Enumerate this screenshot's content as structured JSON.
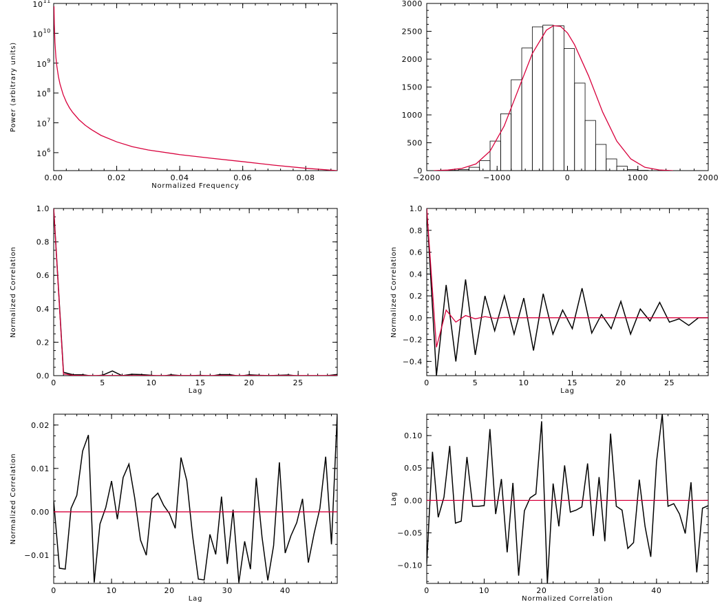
{
  "colors": {
    "data": "#000000",
    "model": "#d8003c",
    "axis": "#000000"
  },
  "chart_data": [
    {
      "type": "line",
      "xlabel": "Normalized Frequency",
      "ylabel": "Power (arbitrary units)",
      "xlim": [
        0,
        0.09
      ],
      "ylim": [
        250000,
        100000000000
      ],
      "yscale": "log",
      "xticks": [
        0.0,
        0.02,
        0.04,
        0.06,
        0.08
      ],
      "xticklabels": [
        "0.00",
        "0.02",
        "0.04",
        "0.06",
        "0.08"
      ],
      "yticks": [
        1000000,
        10000000,
        100000000,
        1000000000,
        10000000000,
        100000000000
      ],
      "yticklabels": [
        {
          "base": "10",
          "exp": "6"
        },
        {
          "base": "10",
          "exp": "7"
        },
        {
          "base": "10",
          "exp": "8"
        },
        {
          "base": "10",
          "exp": "9"
        },
        {
          "base": "10",
          "exp": "10"
        },
        {
          "base": "10",
          "exp": "11"
        }
      ],
      "series": [
        {
          "role": "model",
          "style": "line",
          "x": [
            0.0001,
            0.0002,
            0.0004,
            0.0007,
            0.001,
            0.0015,
            0.002,
            0.003,
            0.004,
            0.005,
            0.006,
            0.008,
            0.01,
            0.012,
            0.015,
            0.02,
            0.025,
            0.03,
            0.04,
            0.05,
            0.06,
            0.07,
            0.08,
            0.09
          ],
          "y": [
            80000000000,
            20000000000,
            5000000000,
            1600000000,
            800000000,
            355000000,
            200000000,
            89000000,
            50000000,
            32000000,
            22500000,
            12800000,
            8300000,
            5900000,
            3800000,
            2300000,
            1580000,
            1230000,
            860000,
            650000,
            500000,
            380000,
            300000,
            250000
          ]
        }
      ]
    },
    {
      "type": "bar",
      "xlim": [
        -2000,
        2000
      ],
      "ylim": [
        0,
        3000
      ],
      "xticks": [
        -2000,
        -1000,
        0,
        1000,
        2000
      ],
      "xticklabels": [
        "−2000",
        "−1000",
        "0",
        "1000",
        "2000"
      ],
      "yticks": [
        0,
        500,
        1000,
        1500,
        2000,
        2500,
        3000
      ],
      "yticklabels": [
        "0",
        "500",
        "1000",
        "1500",
        "2000",
        "2500",
        "3000"
      ],
      "histogram": {
        "bin_edges": [
          -1700,
          -1550,
          -1400,
          -1250,
          -1100,
          -950,
          -800,
          -650,
          -500,
          -350,
          -200,
          -50,
          100,
          250,
          400,
          550,
          700,
          850,
          1000,
          1150,
          1300
        ],
        "counts": [
          5,
          20,
          60,
          180,
          530,
          1020,
          1630,
          2200,
          2580,
          2610,
          2600,
          2190,
          1570,
          900,
          470,
          210,
          80,
          20,
          5,
          0
        ]
      },
      "series": [
        {
          "role": "model",
          "style": "line",
          "x": [
            -1900,
            -1700,
            -1500,
            -1300,
            -1100,
            -900,
            -700,
            -500,
            -300,
            -200,
            -100,
            0,
            100,
            300,
            500,
            700,
            900,
            1100,
            1300,
            1500
          ],
          "y": [
            0,
            10,
            40,
            120,
            350,
            800,
            1450,
            2100,
            2520,
            2600,
            2590,
            2470,
            2260,
            1700,
            1050,
            530,
            210,
            60,
            12,
            0
          ]
        }
      ]
    },
    {
      "type": "line",
      "xlabel": "Lag",
      "ylabel": "Normalized Correlation",
      "xlim": [
        0,
        29
      ],
      "ylim": [
        0.0,
        1.0
      ],
      "xticks": [
        0,
        5,
        10,
        15,
        20,
        25
      ],
      "xticklabels": [
        "0",
        "5",
        "10",
        "15",
        "20",
        "25"
      ],
      "yticks": [
        0.0,
        0.2,
        0.4,
        0.6,
        0.8,
        1.0
      ],
      "yticklabels": [
        "0.0",
        "0.2",
        "0.4",
        "0.6",
        "0.8",
        "1.0"
      ],
      "series": [
        {
          "role": "data",
          "style": "line",
          "x": [
            0,
            1,
            2,
            3,
            4,
            5,
            6,
            7,
            8,
            9,
            10,
            11,
            12,
            13,
            14,
            15,
            16,
            17,
            18,
            19,
            20,
            21,
            22,
            23,
            24,
            25,
            26,
            27,
            28,
            29
          ],
          "y": [
            1.0,
            0.02,
            0.005,
            0.005,
            -0.003,
            0.003,
            0.028,
            0.0,
            0.008,
            0.006,
            0.002,
            -0.004,
            0.005,
            0.0,
            0.0,
            0.002,
            -0.003,
            0.006,
            0.006,
            -0.003,
            0.005,
            0.002,
            0.0,
            0.002,
            0.004,
            -0.002,
            -0.002,
            -0.005,
            0.0,
            0.007
          ]
        },
        {
          "role": "model",
          "style": "line",
          "x": [
            0,
            1,
            2,
            3,
            4,
            5,
            6,
            7,
            8,
            9,
            10,
            11,
            12,
            13,
            14,
            15,
            16,
            17,
            18,
            19,
            20,
            21,
            22,
            23,
            24,
            25,
            26,
            27,
            28,
            29
          ],
          "y": [
            1.0,
            0.01,
            0.002,
            0.001,
            0.001,
            0.001,
            0.001,
            0.001,
            0.001,
            0.001,
            0.001,
            0.001,
            0.001,
            0.001,
            0.001,
            0.001,
            0.001,
            0.001,
            0.001,
            0.001,
            0.001,
            0.001,
            0.001,
            0.001,
            0.001,
            0.001,
            0.001,
            0.001,
            0.001,
            0.001
          ]
        }
      ]
    },
    {
      "type": "line",
      "xlabel": "Lag",
      "ylabel": "Normalized Correlation",
      "xlim": [
        0,
        29
      ],
      "ylim": [
        -0.53,
        1.0
      ],
      "xticks": [
        0,
        5,
        10,
        15,
        20,
        25
      ],
      "xticklabels": [
        "0",
        "5",
        "10",
        "15",
        "20",
        "25"
      ],
      "yticks": [
        -0.4,
        -0.2,
        0.0,
        0.2,
        0.4,
        0.6,
        0.8,
        1.0
      ],
      "yticklabels": [
        "−0.4",
        "−0.2",
        "0.0",
        "0.2",
        "0.4",
        "0.6",
        "0.8",
        "1.0"
      ],
      "series": [
        {
          "role": "data",
          "style": "line",
          "x": [
            0,
            1,
            2,
            3,
            4,
            5,
            6,
            7,
            8,
            9,
            10,
            11,
            12,
            13,
            14,
            15,
            16,
            17,
            18,
            19,
            20,
            21,
            22,
            23,
            24,
            25,
            26,
            27,
            28,
            29
          ],
          "y": [
            1.0,
            -0.53,
            0.3,
            -0.4,
            0.35,
            -0.34,
            0.2,
            -0.12,
            0.2,
            -0.15,
            0.18,
            -0.3,
            0.22,
            -0.15,
            0.07,
            -0.1,
            0.27,
            -0.14,
            0.03,
            -0.1,
            0.15,
            -0.15,
            0.08,
            -0.03,
            0.14,
            -0.04,
            -0.01,
            -0.07,
            0.0,
            0.0
          ]
        },
        {
          "role": "model",
          "style": "line",
          "x": [
            0,
            1,
            2,
            3,
            4,
            5,
            6,
            7,
            8,
            9,
            10,
            11,
            12,
            13,
            14,
            15,
            16,
            17,
            18,
            19,
            20,
            21,
            22,
            23,
            24,
            25,
            26,
            27,
            28,
            29
          ],
          "y": [
            1.0,
            -0.27,
            0.07,
            -0.04,
            0.02,
            -0.01,
            0.01,
            -0.005,
            0.003,
            0.0,
            0.0,
            0.0,
            0.0,
            0.0,
            0.0,
            0.0,
            0.0,
            0.0,
            0.0,
            0.0,
            0.0,
            0.0,
            0.0,
            0.0,
            0.0,
            0.0,
            0.0,
            0.0,
            0.0,
            0.0
          ]
        }
      ]
    },
    {
      "type": "line",
      "xlabel": "Lag",
      "ylabel": "Normalized Correlation",
      "xlim": [
        0,
        49
      ],
      "ylim": [
        -0.0165,
        0.0225
      ],
      "xticks": [
        0,
        10,
        20,
        30,
        40
      ],
      "xticklabels": [
        "0",
        "10",
        "20",
        "30",
        "40"
      ],
      "yticks": [
        -0.01,
        0.0,
        0.01,
        0.02
      ],
      "yticklabels": [
        "−0.01",
        "0.00",
        "0.01",
        "0.02"
      ],
      "series": [
        {
          "role": "data",
          "style": "line",
          "x": [
            0,
            1,
            2,
            3,
            4,
            5,
            6,
            7,
            8,
            9,
            10,
            11,
            12,
            13,
            14,
            15,
            16,
            17,
            18,
            19,
            20,
            21,
            22,
            23,
            24,
            25,
            26,
            27,
            28,
            29,
            30,
            31,
            32,
            33,
            34,
            35,
            36,
            37,
            38,
            39,
            40,
            41,
            42,
            43,
            44,
            45,
            46,
            47,
            48,
            49
          ],
          "y": [
            0.0025,
            -0.013,
            -0.0132,
            0.0008,
            0.0038,
            0.014,
            0.0177,
            -0.0163,
            -0.0028,
            0.001,
            0.0071,
            -0.0017,
            0.0079,
            0.011,
            0.0032,
            -0.0065,
            -0.01,
            0.003,
            0.0043,
            0.0015,
            -0.0004,
            -0.0038,
            0.0125,
            0.0072,
            -0.0055,
            -0.0155,
            -0.0157,
            -0.0052,
            -0.0098,
            0.0035,
            -0.012,
            0.0005,
            -0.0163,
            -0.0068,
            -0.0132,
            0.0078,
            -0.0058,
            -0.0158,
            -0.0078,
            0.0114,
            -0.0095,
            -0.0055,
            -0.0025,
            0.003,
            -0.0117,
            -0.005,
            0.0008,
            0.0127,
            -0.0075,
            0.0225
          ]
        },
        {
          "role": "model",
          "style": "line",
          "x": [
            0,
            49
          ],
          "y": [
            0.0,
            0.0
          ]
        }
      ]
    },
    {
      "type": "line",
      "xlabel": "Normalized Correlation",
      "ylabel": "Lag",
      "xlim": [
        0,
        49
      ],
      "ylim": [
        -0.128,
        0.133
      ],
      "xticks": [
        0,
        10,
        20,
        30,
        40
      ],
      "xticklabels": [
        "0",
        "10",
        "20",
        "30",
        "40"
      ],
      "yticks": [
        -0.1,
        -0.05,
        0.0,
        0.05,
        0.1
      ],
      "yticklabels": [
        "−0.10",
        "−0.05",
        "0.00",
        "0.05",
        "0.10"
      ],
      "series": [
        {
          "role": "data",
          "style": "line",
          "x": [
            0,
            1,
            2,
            3,
            4,
            5,
            6,
            7,
            8,
            9,
            10,
            11,
            12,
            13,
            14,
            15,
            16,
            17,
            18,
            19,
            20,
            21,
            22,
            23,
            24,
            25,
            26,
            27,
            28,
            29,
            30,
            31,
            32,
            33,
            34,
            35,
            36,
            37,
            38,
            39,
            40,
            41,
            42,
            43,
            44,
            45,
            46,
            47,
            48,
            49
          ],
          "y": [
            -0.098,
            0.075,
            -0.026,
            0.005,
            0.084,
            -0.035,
            -0.032,
            0.067,
            -0.009,
            -0.009,
            -0.008,
            0.11,
            -0.021,
            0.033,
            -0.08,
            0.027,
            -0.116,
            -0.016,
            0.004,
            0.01,
            0.122,
            -0.128,
            0.026,
            -0.04,
            0.054,
            -0.018,
            -0.015,
            -0.01,
            0.057,
            -0.055,
            0.036,
            -0.063,
            0.103,
            -0.009,
            -0.015,
            -0.074,
            -0.065,
            0.032,
            -0.04,
            -0.087,
            0.06,
            0.133,
            -0.009,
            -0.005,
            -0.021,
            -0.051,
            0.028,
            -0.111,
            -0.012,
            -0.008
          ]
        },
        {
          "role": "model",
          "style": "line",
          "x": [
            0,
            49
          ],
          "y": [
            0.0,
            0.0
          ]
        }
      ]
    }
  ]
}
